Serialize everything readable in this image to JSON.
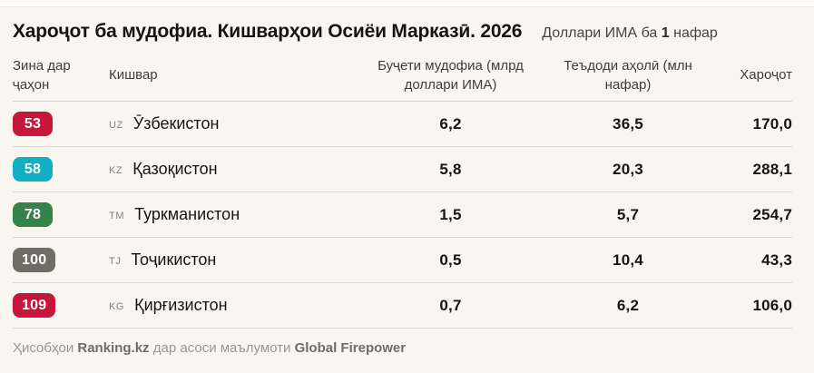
{
  "header": {
    "title": "Хароҷот ба мудофиа. Кишварҳои Осиёи Марказӣ. 2026",
    "subtitle": {
      "prefix": "Доллари ИМА ба ",
      "bold": "1",
      "suffix": " нафар"
    }
  },
  "table": {
    "columns": [
      "Зина дар ҷаҳон",
      "Кишвар",
      "Буҷети мудофиа (млрд доллари ИМА)",
      "Теъдоди аҳолӣ (млн нафар)",
      "Хароҷот"
    ],
    "rows": [
      {
        "rank": "53",
        "rank_color": "#C6173B",
        "code": "UZ",
        "country": "Ӯзбекистон",
        "budget": "6,2",
        "population": "36,5",
        "spending": "170,0"
      },
      {
        "rank": "58",
        "rank_color": "#10AFC4",
        "code": "KZ",
        "country": "Қазоқистон",
        "budget": "5,8",
        "population": "20,3",
        "spending": "288,1"
      },
      {
        "rank": "78",
        "rank_color": "#35824A",
        "code": "TM",
        "country": "Туркманистон",
        "budget": "1,5",
        "population": "5,7",
        "spending": "254,7"
      },
      {
        "rank": "100",
        "rank_color": "#6F6E64",
        "code": "TJ",
        "country": "Тоҷикистон",
        "budget": "0,5",
        "population": "10,4",
        "spending": "43,3"
      },
      {
        "rank": "109",
        "rank_color": "#C6173B",
        "code": "KG",
        "country": "Қирғизистон",
        "budget": "0,7",
        "population": "6,2",
        "spending": "106,0"
      }
    ]
  },
  "footer": {
    "prefix": "Ҳисобҳои ",
    "brand": "Ranking.kz",
    "middle": " дар асоси маълумоти ",
    "source": "Global Firepower"
  },
  "colors": {
    "background": "#F9F6EF",
    "badge_red": "#C6173B",
    "badge_teal": "#10AFC4",
    "badge_green": "#35824A",
    "badge_gray": "#6F6E64",
    "separator": "#DDD9CD"
  },
  "chart_data": {
    "type": "table",
    "title": "Хароҷот ба мудофиа. Кишварҳои Осиёи Марказӣ. 2026",
    "unit": "Доллари ИМА ба 1 нафар",
    "columns": [
      "Зина дар ҷаҳон",
      "Кишвар",
      "Буҷети мудофиа (млрд доллари ИМА)",
      "Теъдоди аҳолӣ (млн нафар)",
      "Хароҷот"
    ],
    "rows": [
      {
        "world_rank": 53,
        "iso": "UZ",
        "country": "Ӯзбекистон",
        "defense_budget_bln_usd": 6.2,
        "population_mln": 36.5,
        "spending_per_capita_usd": 170.0
      },
      {
        "world_rank": 58,
        "iso": "KZ",
        "country": "Қазоқистон",
        "defense_budget_bln_usd": 5.8,
        "population_mln": 20.3,
        "spending_per_capita_usd": 288.1
      },
      {
        "world_rank": 78,
        "iso": "TM",
        "country": "Туркманистон",
        "defense_budget_bln_usd": 1.5,
        "population_mln": 5.7,
        "spending_per_capita_usd": 254.7
      },
      {
        "world_rank": 100,
        "iso": "TJ",
        "country": "Тоҷикистон",
        "defense_budget_bln_usd": 0.5,
        "population_mln": 10.4,
        "spending_per_capita_usd": 43.3
      },
      {
        "world_rank": 109,
        "iso": "KG",
        "country": "Қирғизистон",
        "defense_budget_bln_usd": 0.7,
        "population_mln": 6.2,
        "spending_per_capita_usd": 106.0
      }
    ],
    "source_note": "Ҳисобҳои Ranking.kz дар асоси маълумоти Global Firepower"
  }
}
